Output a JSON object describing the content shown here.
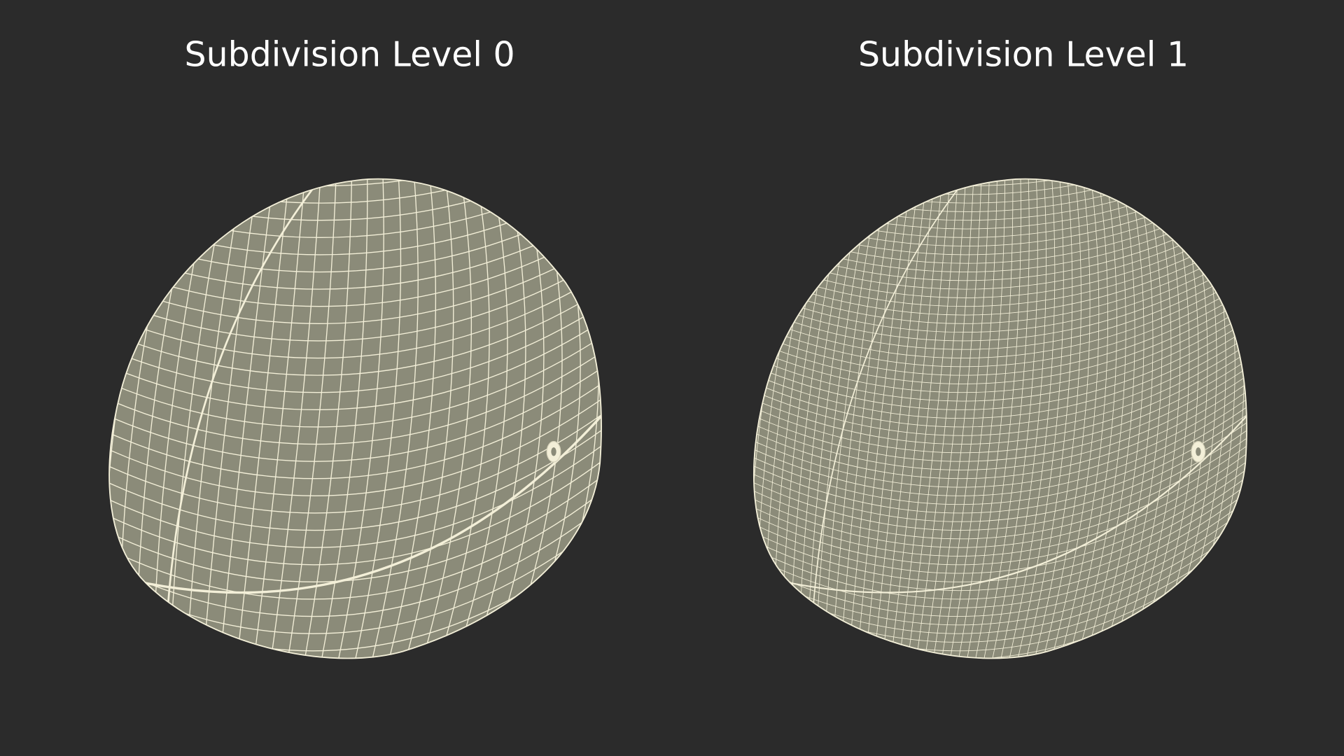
{
  "panels": [
    {
      "title": "Subdivision Level 0"
    },
    {
      "title": "Subdivision Level 1"
    }
  ]
}
